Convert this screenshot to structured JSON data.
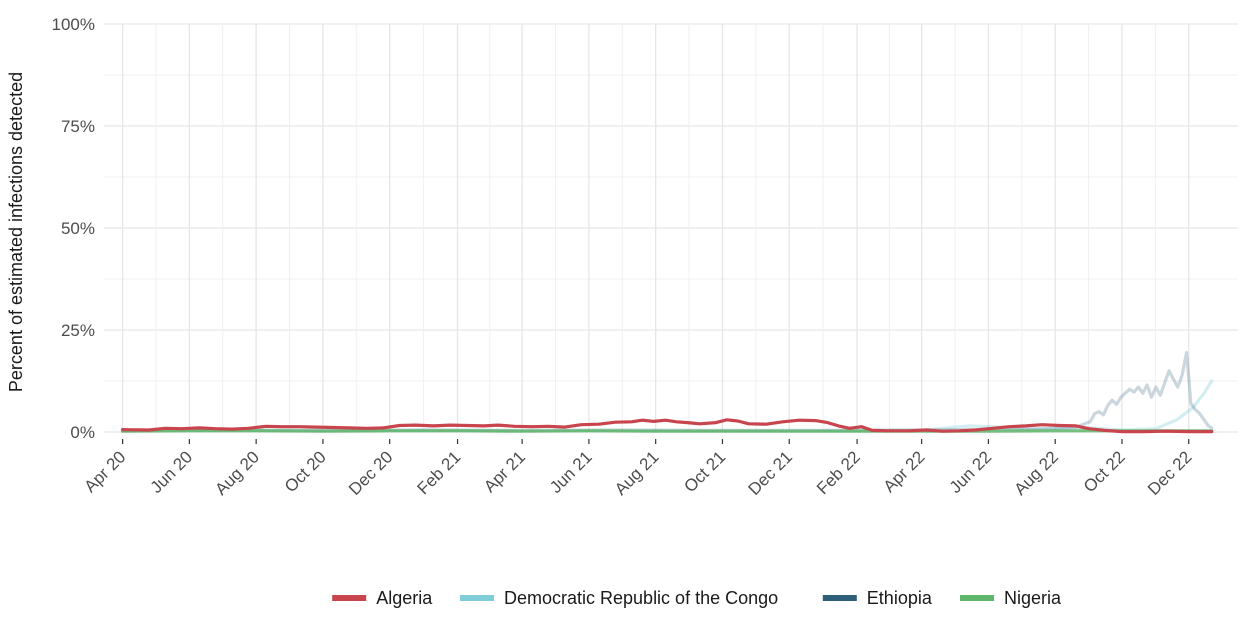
{
  "chart_data": {
    "type": "line",
    "title": "",
    "xlabel": "",
    "ylabel": "Percent of estimated infections detected",
    "ylim": [
      0,
      100
    ],
    "xlim": [
      "2020-03-15",
      "2023-01-15"
    ],
    "y_ticks": [
      {
        "value": 0,
        "label": "0%"
      },
      {
        "value": 25,
        "label": "25%"
      },
      {
        "value": 50,
        "label": "50%"
      },
      {
        "value": 75,
        "label": "75%"
      },
      {
        "value": 100,
        "label": "100%"
      }
    ],
    "x_ticks": [
      {
        "date": "2020-04-01",
        "label": "Apr 20"
      },
      {
        "date": "2020-06-01",
        "label": "Jun 20"
      },
      {
        "date": "2020-08-01",
        "label": "Aug 20"
      },
      {
        "date": "2020-10-01",
        "label": "Oct 20"
      },
      {
        "date": "2020-12-01",
        "label": "Dec 20"
      },
      {
        "date": "2021-02-01",
        "label": "Feb 21"
      },
      {
        "date": "2021-04-01",
        "label": "Apr 21"
      },
      {
        "date": "2021-06-01",
        "label": "Jun 21"
      },
      {
        "date": "2021-08-01",
        "label": "Aug 21"
      },
      {
        "date": "2021-10-01",
        "label": "Oct 21"
      },
      {
        "date": "2021-12-01",
        "label": "Dec 21"
      },
      {
        "date": "2022-02-01",
        "label": "Feb 22"
      },
      {
        "date": "2022-04-01",
        "label": "Apr 22"
      },
      {
        "date": "2022-06-01",
        "label": "Jun 22"
      },
      {
        "date": "2022-08-01",
        "label": "Aug 22"
      },
      {
        "date": "2022-10-01",
        "label": "Oct 22"
      },
      {
        "date": "2022-12-01",
        "label": "Dec 22"
      }
    ],
    "grid": true,
    "legend_position": "bottom",
    "series": [
      {
        "name": "Democratic Republic of the Congo",
        "color": "#7fcdd9",
        "opacity": 0.35,
        "points": [
          [
            "2020-04-01",
            0.3
          ],
          [
            "2020-07-01",
            0.4
          ],
          [
            "2020-10-01",
            0.3
          ],
          [
            "2021-01-01",
            0.4
          ],
          [
            "2021-04-01",
            0.3
          ],
          [
            "2021-07-01",
            0.3
          ],
          [
            "2021-10-01",
            0.3
          ],
          [
            "2022-01-01",
            0.3
          ],
          [
            "2022-04-01",
            0.4
          ],
          [
            "2022-05-15",
            1.5
          ],
          [
            "2022-06-10",
            1.2
          ],
          [
            "2022-07-01",
            0.6
          ],
          [
            "2022-08-01",
            0.8
          ],
          [
            "2022-09-01",
            1.0
          ],
          [
            "2022-10-01",
            0.5
          ],
          [
            "2022-11-01",
            0.8
          ],
          [
            "2022-11-20",
            3.0
          ],
          [
            "2022-12-05",
            6.0
          ],
          [
            "2022-12-15",
            9.5
          ],
          [
            "2022-12-22",
            12.5
          ]
        ]
      },
      {
        "name": "Ethiopia",
        "color": "#2e5f7a",
        "opacity": 0.25,
        "points": [
          [
            "2020-04-01",
            0.4
          ],
          [
            "2020-07-01",
            0.5
          ],
          [
            "2020-10-01",
            0.4
          ],
          [
            "2021-01-01",
            0.5
          ],
          [
            "2021-04-01",
            0.4
          ],
          [
            "2021-07-01",
            0.5
          ],
          [
            "2021-10-01",
            0.4
          ],
          [
            "2022-01-01",
            0.4
          ],
          [
            "2022-04-01",
            0.5
          ],
          [
            "2022-06-01",
            0.6
          ],
          [
            "2022-08-01",
            0.8
          ],
          [
            "2022-08-20",
            1.2
          ],
          [
            "2022-08-28",
            2.0
          ],
          [
            "2022-09-02",
            2.5
          ],
          [
            "2022-09-06",
            4.5
          ],
          [
            "2022-09-10",
            5.0
          ],
          [
            "2022-09-14",
            4.2
          ],
          [
            "2022-09-18",
            6.5
          ],
          [
            "2022-09-22",
            7.8
          ],
          [
            "2022-09-26",
            6.8
          ],
          [
            "2022-09-30",
            8.5
          ],
          [
            "2022-10-04",
            9.5
          ],
          [
            "2022-10-08",
            10.5
          ],
          [
            "2022-10-12",
            9.8
          ],
          [
            "2022-10-16",
            11.0
          ],
          [
            "2022-10-20",
            9.5
          ],
          [
            "2022-10-24",
            11.5
          ],
          [
            "2022-10-28",
            8.5
          ],
          [
            "2022-11-01",
            11.0
          ],
          [
            "2022-11-05",
            9.0
          ],
          [
            "2022-11-09",
            12.0
          ],
          [
            "2022-11-13",
            15.0
          ],
          [
            "2022-11-17",
            13.0
          ],
          [
            "2022-11-21",
            11.0
          ],
          [
            "2022-11-25",
            14.0
          ],
          [
            "2022-11-29",
            19.5
          ],
          [
            "2022-12-03",
            7.0
          ],
          [
            "2022-12-07",
            5.5
          ],
          [
            "2022-12-11",
            4.5
          ],
          [
            "2022-12-15",
            3.0
          ],
          [
            "2022-12-19",
            1.5
          ],
          [
            "2022-12-22",
            1.0
          ]
        ]
      },
      {
        "name": "Nigeria",
        "color": "#5fb66a",
        "opacity": 0.85,
        "points": [
          [
            "2020-04-01",
            0.2
          ],
          [
            "2020-06-01",
            0.3
          ],
          [
            "2020-08-01",
            0.3
          ],
          [
            "2020-10-01",
            0.2
          ],
          [
            "2020-12-01",
            0.3
          ],
          [
            "2021-02-01",
            0.3
          ],
          [
            "2021-04-01",
            0.2
          ],
          [
            "2021-06-01",
            0.3
          ],
          [
            "2021-08-01",
            0.2
          ],
          [
            "2021-10-01",
            0.2
          ],
          [
            "2021-12-01",
            0.2
          ],
          [
            "2022-02-01",
            0.2
          ],
          [
            "2022-04-01",
            0.2
          ],
          [
            "2022-06-01",
            0.2
          ],
          [
            "2022-08-01",
            0.3
          ],
          [
            "2022-10-01",
            0.3
          ],
          [
            "2022-12-01",
            0.3
          ],
          [
            "2022-12-22",
            0.3
          ]
        ]
      },
      {
        "name": "Algeria",
        "color": "#c8454e",
        "opacity": 1,
        "points": [
          [
            "2020-04-01",
            0.6
          ],
          [
            "2020-04-25",
            0.5
          ],
          [
            "2020-05-10",
            0.9
          ],
          [
            "2020-05-25",
            0.8
          ],
          [
            "2020-06-10",
            1.0
          ],
          [
            "2020-06-25",
            0.8
          ],
          [
            "2020-07-10",
            0.7
          ],
          [
            "2020-07-25",
            0.9
          ],
          [
            "2020-08-10",
            1.4
          ],
          [
            "2020-08-25",
            1.3
          ],
          [
            "2020-09-10",
            1.3
          ],
          [
            "2020-09-25",
            1.2
          ],
          [
            "2020-10-10",
            1.1
          ],
          [
            "2020-10-25",
            1.0
          ],
          [
            "2020-11-10",
            0.9
          ],
          [
            "2020-11-25",
            1.0
          ],
          [
            "2020-12-10",
            1.6
          ],
          [
            "2020-12-25",
            1.7
          ],
          [
            "2021-01-10",
            1.5
          ],
          [
            "2021-01-25",
            1.7
          ],
          [
            "2021-02-10",
            1.6
          ],
          [
            "2021-02-25",
            1.5
          ],
          [
            "2021-03-10",
            1.7
          ],
          [
            "2021-03-25",
            1.4
          ],
          [
            "2021-04-10",
            1.3
          ],
          [
            "2021-04-25",
            1.4
          ],
          [
            "2021-05-10",
            1.2
          ],
          [
            "2021-05-25",
            1.8
          ],
          [
            "2021-06-10",
            1.9
          ],
          [
            "2021-06-25",
            2.4
          ],
          [
            "2021-07-10",
            2.5
          ],
          [
            "2021-07-20",
            2.9
          ],
          [
            "2021-07-30",
            2.6
          ],
          [
            "2021-08-10",
            2.9
          ],
          [
            "2021-08-20",
            2.5
          ],
          [
            "2021-08-30",
            2.3
          ],
          [
            "2021-09-10",
            2.0
          ],
          [
            "2021-09-25",
            2.3
          ],
          [
            "2021-10-05",
            3.0
          ],
          [
            "2021-10-15",
            2.7
          ],
          [
            "2021-10-25",
            2.0
          ],
          [
            "2021-11-10",
            1.9
          ],
          [
            "2021-11-25",
            2.5
          ],
          [
            "2021-12-10",
            2.9
          ],
          [
            "2021-12-25",
            2.8
          ],
          [
            "2022-01-05",
            2.3
          ],
          [
            "2022-01-15",
            1.5
          ],
          [
            "2022-01-25",
            0.9
          ],
          [
            "2022-02-05",
            1.3
          ],
          [
            "2022-02-15",
            0.4
          ],
          [
            "2022-03-01",
            0.3
          ],
          [
            "2022-03-20",
            0.3
          ],
          [
            "2022-04-05",
            0.5
          ],
          [
            "2022-04-20",
            0.2
          ],
          [
            "2022-05-05",
            0.3
          ],
          [
            "2022-05-20",
            0.5
          ],
          [
            "2022-06-05",
            0.9
          ],
          [
            "2022-06-20",
            1.3
          ],
          [
            "2022-07-05",
            1.5
          ],
          [
            "2022-07-20",
            1.8
          ],
          [
            "2022-08-05",
            1.6
          ],
          [
            "2022-08-20",
            1.5
          ],
          [
            "2022-09-01",
            0.8
          ],
          [
            "2022-09-15",
            0.4
          ],
          [
            "2022-10-01",
            0.1
          ],
          [
            "2022-10-20",
            0.1
          ],
          [
            "2022-11-10",
            0.2
          ],
          [
            "2022-12-01",
            0.1
          ],
          [
            "2022-12-22",
            0.1
          ]
        ]
      }
    ],
    "legend": [
      "Algeria",
      "Democratic Republic of the Congo",
      "Ethiopia",
      "Nigeria"
    ]
  }
}
